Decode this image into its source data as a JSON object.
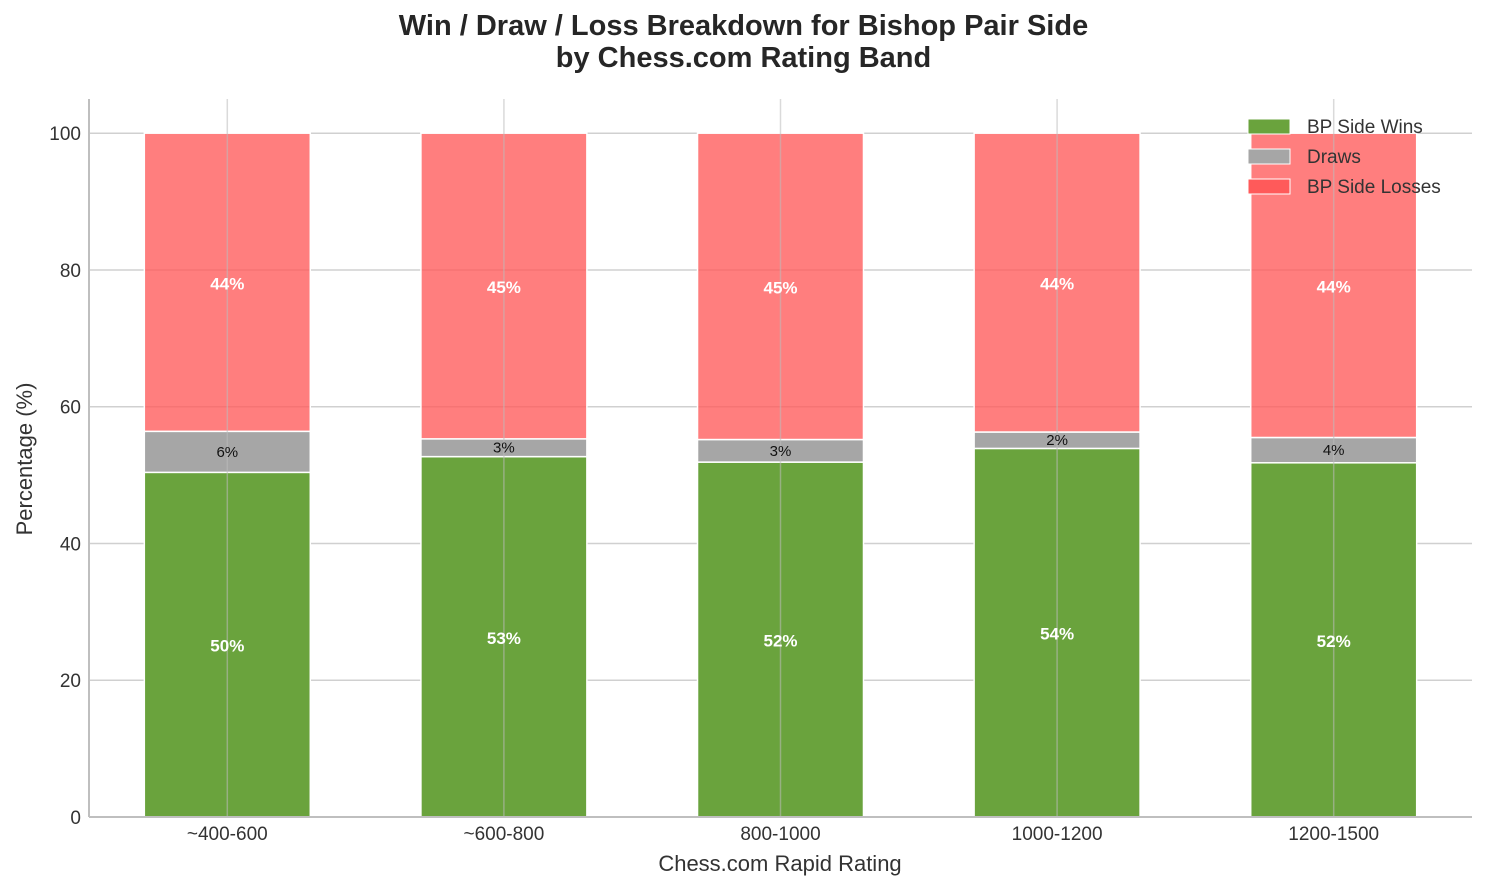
{
  "chart_data": {
    "type": "bar",
    "stacked": true,
    "title_lines": [
      "Win / Draw / Loss Breakdown for Bishop Pair Side",
      "by Chess.com Rating Band"
    ],
    "xlabel": "Chess.com Rapid Rating",
    "ylabel": "Percentage (%)",
    "ylim": [
      0,
      105
    ],
    "yticks": [
      0,
      20,
      40,
      60,
      80,
      100
    ],
    "grid": true,
    "legend_position": "top-right",
    "categories": [
      "~400-600",
      "~600-800",
      "800-1000",
      "1000-1200",
      "1200-1500"
    ],
    "series": [
      {
        "name": "BP Side Wins",
        "color": "#6aa33d",
        "values": [
          50.4,
          52.7,
          51.9,
          53.9,
          51.8
        ],
        "labels": [
          "50%",
          "53%",
          "52%",
          "54%",
          "52%"
        ]
      },
      {
        "name": "Draws",
        "color": "#a6a6a6",
        "values": [
          6.0,
          2.6,
          3.3,
          2.4,
          3.7
        ],
        "labels": [
          "6%",
          "3%",
          "3%",
          "2%",
          "4%"
        ]
      },
      {
        "name": "BP Side Losses",
        "color": "#ff5a5a",
        "values": [
          43.6,
          44.7,
          44.8,
          43.7,
          44.5
        ],
        "labels": [
          "44%",
          "45%",
          "45%",
          "44%",
          "44%"
        ]
      }
    ]
  }
}
